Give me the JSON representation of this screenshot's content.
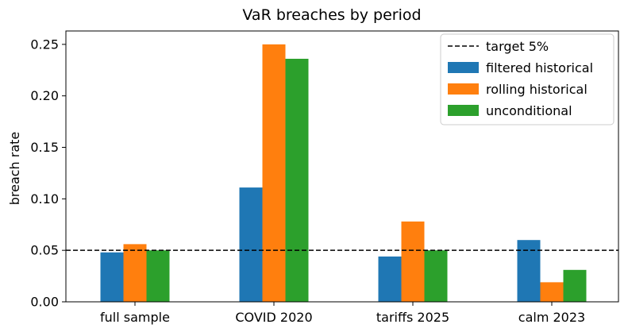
{
  "chart_data": {
    "type": "bar",
    "title": "VaR breaches by period",
    "xlabel": "",
    "ylabel": "breach rate",
    "categories": [
      "full sample",
      "COVID 2020",
      "tariffs 2025",
      "calm 2023"
    ],
    "series": [
      {
        "name": "filtered historical",
        "color": "#1f77b4",
        "values": [
          0.048,
          0.111,
          0.044,
          0.06
        ]
      },
      {
        "name": "rolling historical",
        "color": "#ff7f0e",
        "values": [
          0.056,
          0.25,
          0.078,
          0.019
        ]
      },
      {
        "name": "unconditional",
        "color": "#2ca02c",
        "values": [
          0.05,
          0.236,
          0.05,
          0.031
        ]
      }
    ],
    "reference_line": {
      "label": "target 5%",
      "value": 0.05,
      "style": "dashed",
      "color": "#000000"
    },
    "ylim": [
      0,
      0.263
    ],
    "yticks": [
      0.0,
      0.05,
      0.1,
      0.15,
      0.2,
      0.25
    ],
    "ytick_labels": [
      "0.00",
      "0.05",
      "0.10",
      "0.15",
      "0.20",
      "0.25"
    ],
    "grid": false,
    "legend_position": "upper right"
  }
}
